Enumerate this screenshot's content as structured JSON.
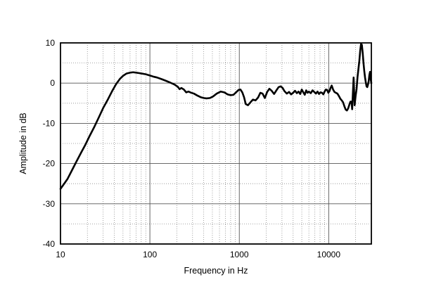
{
  "chart_data": {
    "type": "line",
    "title": "",
    "xlabel": "Frequency in Hz",
    "ylabel": "Amplitude in dB",
    "xscale": "log",
    "xlim": [
      10,
      30000
    ],
    "ylim": [
      -40,
      10
    ],
    "grid": true,
    "x_ticks": [
      10,
      100,
      1000,
      10000
    ],
    "x_tick_labels": [
      "10",
      "100",
      "1000",
      "10000"
    ],
    "y_ticks": [
      10,
      0,
      -10,
      -20,
      -30,
      -40
    ],
    "y_tick_labels": [
      "10",
      "0",
      "-10",
      "-20",
      "-30",
      "-40"
    ],
    "series": [
      {
        "x": [
          10,
          11,
          12,
          13,
          14,
          15,
          17,
          19,
          21,
          24,
          27,
          30,
          34,
          38,
          42,
          46,
          50,
          55,
          60,
          65,
          70,
          75,
          80,
          90,
          100,
          110,
          120,
          135,
          150,
          170,
          190,
          205,
          215,
          225,
          240,
          255,
          270,
          290,
          310,
          340,
          370,
          400,
          430,
          470,
          510,
          560,
          620,
          680,
          740,
          800,
          860,
          920,
          980,
          1030,
          1080,
          1130,
          1180,
          1250,
          1330,
          1420,
          1520,
          1620,
          1720,
          1820,
          1930,
          2050,
          2170,
          2300,
          2450,
          2600,
          2750,
          2900,
          3050,
          3200,
          3400,
          3600,
          3800,
          4000,
          4200,
          4400,
          4600,
          4800,
          5000,
          5200,
          5400,
          5600,
          5800,
          6000,
          6300,
          6600,
          6900,
          7200,
          7500,
          7800,
          8100,
          8400,
          8700,
          9000,
          9300,
          9600,
          9900,
          10200,
          10500,
          10800,
          11200,
          11600,
          12000,
          12500,
          13000,
          13500,
          14000,
          14500,
          15000,
          15500,
          16000,
          16500,
          17000,
          17500,
          18000,
          18300,
          18600,
          19000,
          19500,
          20000,
          20500,
          21000,
          21500,
          22000,
          22500,
          23000,
          23500,
          24000,
          24500,
          25000,
          25500,
          26000,
          26500,
          27000,
          27500,
          28000,
          28500,
          29000,
          29500,
          30000
        ],
        "y": [
          -26.3,
          -25,
          -23.8,
          -22.3,
          -20.9,
          -19.6,
          -17.3,
          -15.3,
          -13.3,
          -10.8,
          -8.4,
          -6.2,
          -4,
          -1.9,
          -0.2,
          1,
          1.8,
          2.4,
          2.6,
          2.7,
          2.6,
          2.5,
          2.4,
          2.2,
          1.9,
          1.6,
          1.4,
          1,
          0.6,
          0.1,
          -0.4,
          -0.9,
          -1.5,
          -1.2,
          -1.6,
          -2.3,
          -2.1,
          -2.4,
          -2.6,
          -3.1,
          -3.5,
          -3.7,
          -3.8,
          -3.7,
          -3.3,
          -2.6,
          -2.1,
          -2.3,
          -2.8,
          -3,
          -2.9,
          -2.3,
          -1.7,
          -1.6,
          -2.3,
          -3.5,
          -5.2,
          -5.5,
          -4.8,
          -4.1,
          -4.3,
          -3.6,
          -2.4,
          -2.6,
          -3.7,
          -2.2,
          -1.4,
          -1.9,
          -2.7,
          -1.8,
          -1,
          -0.8,
          -1.2,
          -2,
          -2.6,
          -2.2,
          -2.8,
          -2.4,
          -1.9,
          -2.5,
          -2.1,
          -2.7,
          -1.6,
          -2.3,
          -2.9,
          -1.8,
          -2.4,
          -2.1,
          -2.5,
          -1.8,
          -2.2,
          -2.6,
          -2.1,
          -2.7,
          -2.3,
          -2.4,
          -2.8,
          -2.1,
          -1.6,
          -1.7,
          -2.4,
          -2,
          -1.2,
          -0.6,
          -1.6,
          -2.2,
          -2.4,
          -2.6,
          -3.2,
          -3.9,
          -4.3,
          -4.8,
          -5.8,
          -6.6,
          -6.8,
          -6.3,
          -5.4,
          -4.6,
          -4.6,
          -6.5,
          -3,
          1.4,
          -5.5,
          -3.2,
          -1.5,
          1.5,
          3.5,
          5.5,
          8,
          9.8,
          9.5,
          7.5,
          5,
          3,
          1.4,
          0.2,
          -0.8,
          -1,
          -0.4,
          0.5,
          2,
          2.8,
          1,
          0
        ]
      }
    ]
  }
}
